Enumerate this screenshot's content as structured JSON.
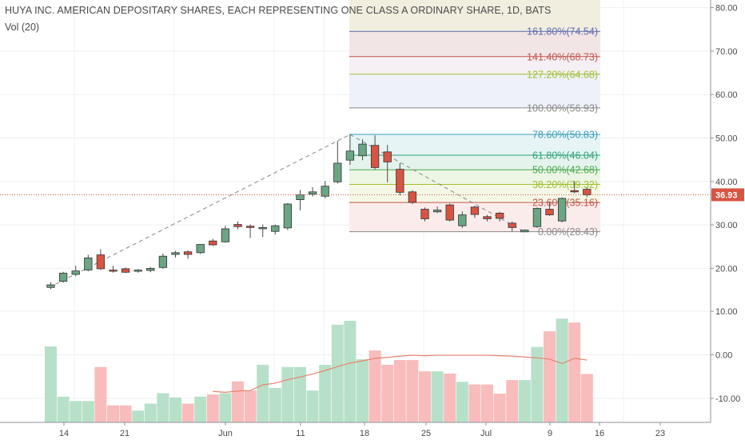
{
  "title": "HUYA INC. AMERICAN DEPOSITARY SHARES, EACH REPRESENTING ONE CLASS A ORDINARY SHARE, 1D, BATS",
  "volume_label": "Vol (20)",
  "current_price_label": "36.93",
  "colors": {
    "up": "#6ba583",
    "down": "#d75442",
    "vol_up": "#b7e0c9",
    "vol_down": "#f8bcbc",
    "ma": "#e8836f",
    "price_line": "#d75442",
    "trend": "#888888"
  },
  "chart_data": {
    "type": "candlestick",
    "price_axis": {
      "ticks": [
        "80.00",
        "70.00",
        "60.00",
        "50.00",
        "40.00",
        "30.00",
        "20.00"
      ]
    },
    "volume_axis": {
      "ticks": [
        "10.00",
        "0.00",
        "-10.00"
      ]
    },
    "x_ticks": [
      "14",
      "21",
      "Jun",
      "11",
      "18",
      "25",
      "Jul",
      "9",
      "16",
      "23"
    ],
    "current_price": 36.93,
    "candles": [
      {
        "o": 15.6,
        "h": 16.8,
        "l": 15.2,
        "c": 16.2
      },
      {
        "o": 17.0,
        "h": 19.2,
        "l": 16.7,
        "c": 18.9
      },
      {
        "o": 18.6,
        "h": 20.6,
        "l": 18.2,
        "c": 19.4
      },
      {
        "o": 19.6,
        "h": 23.1,
        "l": 19.3,
        "c": 22.4
      },
      {
        "o": 23.1,
        "h": 24.4,
        "l": 19.6,
        "c": 19.9
      },
      {
        "o": 19.6,
        "h": 20.6,
        "l": 19.0,
        "c": 19.5
      },
      {
        "o": 19.9,
        "h": 20.2,
        "l": 18.9,
        "c": 19.1
      },
      {
        "o": 19.4,
        "h": 19.8,
        "l": 19.0,
        "c": 19.6
      },
      {
        "o": 19.5,
        "h": 20.3,
        "l": 19.1,
        "c": 20.0
      },
      {
        "o": 20.2,
        "h": 23.4,
        "l": 19.9,
        "c": 22.8
      },
      {
        "o": 23.2,
        "h": 24.0,
        "l": 22.5,
        "c": 23.6
      },
      {
        "o": 23.8,
        "h": 24.1,
        "l": 22.2,
        "c": 23.2
      },
      {
        "o": 23.6,
        "h": 25.6,
        "l": 23.3,
        "c": 25.5
      },
      {
        "o": 26.3,
        "h": 26.8,
        "l": 25.2,
        "c": 25.4
      },
      {
        "o": 26.1,
        "h": 29.8,
        "l": 25.9,
        "c": 29.1
      },
      {
        "o": 30.1,
        "h": 30.8,
        "l": 29.0,
        "c": 29.6
      },
      {
        "o": 29.7,
        "h": 30.1,
        "l": 27.0,
        "c": 29.4
      },
      {
        "o": 29.1,
        "h": 30.1,
        "l": 27.2,
        "c": 29.4
      },
      {
        "o": 28.5,
        "h": 30.1,
        "l": 27.8,
        "c": 29.8
      },
      {
        "o": 29.3,
        "h": 35.0,
        "l": 28.8,
        "c": 34.8
      },
      {
        "o": 35.8,
        "h": 38.0,
        "l": 33.3,
        "c": 36.9
      },
      {
        "o": 37.1,
        "h": 38.7,
        "l": 36.5,
        "c": 37.6
      },
      {
        "o": 36.6,
        "h": 40.1,
        "l": 36.1,
        "c": 38.9
      },
      {
        "o": 39.9,
        "h": 49.3,
        "l": 39.5,
        "c": 44.2
      },
      {
        "o": 44.9,
        "h": 50.8,
        "l": 43.8,
        "c": 47.0
      },
      {
        "o": 45.9,
        "h": 49.7,
        "l": 44.9,
        "c": 48.6
      },
      {
        "o": 48.3,
        "h": 50.6,
        "l": 42.8,
        "c": 43.2
      },
      {
        "o": 46.8,
        "h": 48.4,
        "l": 39.8,
        "c": 44.5
      },
      {
        "o": 42.8,
        "h": 44.2,
        "l": 36.8,
        "c": 37.5
      },
      {
        "o": 37.6,
        "h": 38.0,
        "l": 34.8,
        "c": 35.2
      },
      {
        "o": 33.6,
        "h": 34.0,
        "l": 30.8,
        "c": 31.4
      },
      {
        "o": 33.0,
        "h": 34.2,
        "l": 32.7,
        "c": 33.4
      },
      {
        "o": 34.6,
        "h": 34.9,
        "l": 30.8,
        "c": 31.1
      },
      {
        "o": 29.8,
        "h": 33.1,
        "l": 29.3,
        "c": 32.3
      },
      {
        "o": 34.1,
        "h": 34.4,
        "l": 31.6,
        "c": 32.4
      },
      {
        "o": 31.9,
        "h": 32.3,
        "l": 30.8,
        "c": 31.4
      },
      {
        "o": 32.7,
        "h": 33.0,
        "l": 30.8,
        "c": 31.5
      },
      {
        "o": 30.4,
        "h": 30.8,
        "l": 28.5,
        "c": 29.4
      },
      {
        "o": 28.4,
        "h": 28.9,
        "l": 28.4,
        "c": 28.8
      },
      {
        "o": 29.6,
        "h": 34.0,
        "l": 29.3,
        "c": 33.8
      },
      {
        "o": 33.6,
        "h": 35.2,
        "l": 32.1,
        "c": 32.3
      },
      {
        "o": 30.9,
        "h": 36.3,
        "l": 30.6,
        "c": 36.1
      },
      {
        "o": 37.9,
        "h": 40.1,
        "l": 37.3,
        "c": 37.6
      },
      {
        "o": 38.2,
        "h": 38.6,
        "l": 36.4,
        "c": 36.9
      }
    ],
    "volumes": [
      1.9,
      -9.6,
      -10.6,
      -10.6,
      -2.8,
      -11.6,
      -11.6,
      -12.8,
      -11.2,
      -8.8,
      -9.8,
      -11.2,
      -9.6,
      -9.1,
      -8.8,
      -6.1,
      -8.2,
      -2.3,
      -7.6,
      -2.8,
      -2.8,
      -8.2,
      -2.3,
      6.9,
      7.8,
      -1.0,
      1.0,
      -2.3,
      -1.2,
      -1.2,
      -3.8,
      -3.8,
      -4.3,
      -6.2,
      -6.8,
      -6.8,
      -8.9,
      -5.8,
      -5.8,
      1.8,
      5.4,
      8.3,
      7.4,
      -4.4
    ],
    "volume_ma": [
      {
        "i": 13,
        "v": -8.4
      },
      {
        "i": 14,
        "v": -8.6
      },
      {
        "i": 15,
        "v": -8.3
      },
      {
        "i": 16,
        "v": -8.2
      },
      {
        "i": 17,
        "v": -6.9
      },
      {
        "i": 18,
        "v": -6.5
      },
      {
        "i": 19,
        "v": -5.7
      },
      {
        "i": 20,
        "v": -5.1
      },
      {
        "i": 21,
        "v": -4.4
      },
      {
        "i": 22,
        "v": -3.6
      },
      {
        "i": 23,
        "v": -2.7
      },
      {
        "i": 24,
        "v": -1.9
      },
      {
        "i": 25,
        "v": -1.4
      },
      {
        "i": 26,
        "v": -0.8
      },
      {
        "i": 27,
        "v": -0.6
      },
      {
        "i": 28,
        "v": -0.3
      },
      {
        "i": 29,
        "v": -0.1
      },
      {
        "i": 30,
        "v": -0.2
      },
      {
        "i": 31,
        "v": -0.1
      },
      {
        "i": 32,
        "v": -0.1
      },
      {
        "i": 33,
        "v": -0.1
      },
      {
        "i": 34,
        "v": -0.1
      },
      {
        "i": 35,
        "v": -0.1
      },
      {
        "i": 36,
        "v": -0.2
      },
      {
        "i": 37,
        "v": -0.3
      },
      {
        "i": 38,
        "v": -0.5
      },
      {
        "i": 39,
        "v": -0.7
      },
      {
        "i": 40,
        "v": -1.0
      },
      {
        "i": 41,
        "v": -2.0
      },
      {
        "i": 42,
        "v": -0.8
      },
      {
        "i": 43,
        "v": -1.2
      }
    ],
    "fib_levels": [
      {
        "label": "161.80%(74.54)",
        "value": 74.54,
        "color": "#5f6bb0",
        "fill": "#f1eee0"
      },
      {
        "label": "141.40%(68.73)",
        "value": 68.73,
        "color": "#c0574a",
        "fill": "#f1e6e5"
      },
      {
        "label": "127.20%(64.68)",
        "value": 64.68,
        "color": "#9fbf2e",
        "fill": "#f6f0f4"
      },
      {
        "label": "100.00%(56.93)",
        "value": 56.93,
        "color": "#888888",
        "fill": "#eef0fa"
      },
      {
        "label": "78.60%(50.83)",
        "value": 50.83,
        "color": "#3a9db9",
        "fill": "#ffffff"
      },
      {
        "label": "61.80%(46.04)",
        "value": 46.04,
        "color": "#2ea37a",
        "fill": "#e6f4f5"
      },
      {
        "label": "50.00%(42.68)",
        "value": 42.68,
        "color": "#4ca84e",
        "fill": "#e4f3ec"
      },
      {
        "label": "38.20%(39.32)",
        "value": 39.32,
        "color": "#9fbf2e",
        "fill": "#ecf6e4"
      },
      {
        "label": "23.60%(35.16)",
        "value": 35.16,
        "color": "#c0574a",
        "fill": "#f4f7e6"
      },
      {
        "label": "0.00%(28.43)",
        "value": 28.43,
        "color": "#888888",
        "fill": "#fbecec"
      }
    ]
  }
}
